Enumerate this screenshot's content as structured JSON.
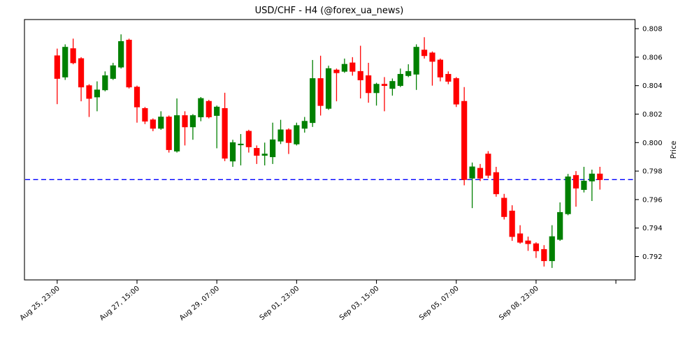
{
  "chart": {
    "title": "USD/CHF - H4 (@forex_ua_news)",
    "ylabel": "Price"
  },
  "chart_data": {
    "type": "candlestick",
    "title": "USD/CHF - H4 (@forex_ua_news)",
    "ylabel": "Price",
    "ylabel_side": "right",
    "grid": false,
    "ylim": [
      0.79036,
      0.80864
    ],
    "y_ticks": [
      0.792,
      0.794,
      0.796,
      0.798,
      0.8,
      0.802,
      0.804,
      0.806,
      0.808
    ],
    "x_ticks": [
      {
        "i": 0,
        "label": "Aug 25, 23:00"
      },
      {
        "i": 10,
        "label": "Aug 27, 15:00"
      },
      {
        "i": 20,
        "label": "Aug 29, 07:00"
      },
      {
        "i": 30,
        "label": "Sep 01, 23:00"
      },
      {
        "i": 40,
        "label": "Sep 03, 15:00"
      },
      {
        "i": 50,
        "label": "Sep 05, 07:00"
      },
      {
        "i": 60,
        "label": "Sep 08, 23:00"
      },
      {
        "i": 70,
        "label": ""
      }
    ],
    "hline": {
      "price": 0.7974,
      "color": "#0000ff",
      "style": "dashed"
    },
    "colors": {
      "up": "#008000",
      "down": "#ff0000",
      "axis": "#000000",
      "background": "#ffffff"
    },
    "candles_ohlc": [
      [
        0.8061,
        0.8066,
        0.8027,
        0.8045
      ],
      [
        0.8046,
        0.8069,
        0.8044,
        0.8067
      ],
      [
        0.8066,
        0.8073,
        0.8055,
        0.8056
      ],
      [
        0.8059,
        0.806,
        0.8029,
        0.8039
      ],
      [
        0.804,
        0.8041,
        0.8018,
        0.8031
      ],
      [
        0.8032,
        0.8043,
        0.8022,
        0.8037
      ],
      [
        0.8037,
        0.805,
        0.8036,
        0.8047
      ],
      [
        0.8045,
        0.8056,
        0.8044,
        0.8054
      ],
      [
        0.8053,
        0.8076,
        0.8052,
        0.8071
      ],
      [
        0.8072,
        0.8073,
        0.8038,
        0.8039
      ],
      [
        0.8039,
        0.804,
        0.8014,
        0.8025
      ],
      [
        0.8024,
        0.8025,
        0.8013,
        0.8015
      ],
      [
        0.8016,
        0.8017,
        0.8008,
        0.801
      ],
      [
        0.801,
        0.8022,
        0.8009,
        0.8018
      ],
      [
        0.8018,
        0.8019,
        0.7993,
        0.7995
      ],
      [
        0.7994,
        0.8031,
        0.7993,
        0.8019
      ],
      [
        0.8019,
        0.8022,
        0.7998,
        0.8011
      ],
      [
        0.8011,
        0.802,
        0.8002,
        0.8019
      ],
      [
        0.8018,
        0.8032,
        0.8015,
        0.8031
      ],
      [
        0.8029,
        0.803,
        0.8017,
        0.8018
      ],
      [
        0.8019,
        0.8026,
        0.7996,
        0.8025
      ],
      [
        0.8024,
        0.8035,
        0.7987,
        0.7989
      ],
      [
        0.7987,
        0.8002,
        0.7983,
        0.8
      ],
      [
        0.7999,
        0.8006,
        0.7984,
        0.7999
      ],
      [
        0.8008,
        0.8009,
        0.7993,
        0.7997
      ],
      [
        0.7996,
        0.7998,
        0.7985,
        0.7991
      ],
      [
        0.7991,
        0.8,
        0.7984,
        0.7992
      ],
      [
        0.799,
        0.8014,
        0.7985,
        0.8002
      ],
      [
        0.8001,
        0.8016,
        0.7999,
        0.8009
      ],
      [
        0.8009,
        0.801,
        0.7992,
        0.8
      ],
      [
        0.7999,
        0.8014,
        0.7998,
        0.8012
      ],
      [
        0.801,
        0.8018,
        0.8007,
        0.8015
      ],
      [
        0.8014,
        0.8058,
        0.8011,
        0.8045
      ],
      [
        0.8045,
        0.8061,
        0.8019,
        0.8026
      ],
      [
        0.8024,
        0.8054,
        0.8023,
        0.8052
      ],
      [
        0.8051,
        0.8052,
        0.8029,
        0.8049
      ],
      [
        0.805,
        0.8059,
        0.8049,
        0.8055
      ],
      [
        0.8056,
        0.806,
        0.8047,
        0.805
      ],
      [
        0.805,
        0.8068,
        0.8031,
        0.8044
      ],
      [
        0.8047,
        0.8056,
        0.8028,
        0.8035
      ],
      [
        0.8035,
        0.8042,
        0.8026,
        0.8041
      ],
      [
        0.8041,
        0.8046,
        0.8022,
        0.804
      ],
      [
        0.8038,
        0.8045,
        0.8033,
        0.8043
      ],
      [
        0.804,
        0.8052,
        0.8039,
        0.8048
      ],
      [
        0.8047,
        0.8055,
        0.8046,
        0.805
      ],
      [
        0.8048,
        0.8069,
        0.8037,
        0.8067
      ],
      [
        0.8065,
        0.8074,
        0.8059,
        0.8061
      ],
      [
        0.8063,
        0.8064,
        0.804,
        0.8057
      ],
      [
        0.8058,
        0.8059,
        0.8043,
        0.8046
      ],
      [
        0.8048,
        0.805,
        0.8041,
        0.8043
      ],
      [
        0.8045,
        0.8046,
        0.8025,
        0.8027
      ],
      [
        0.8029,
        0.8039,
        0.797,
        0.7974
      ],
      [
        0.7975,
        0.7986,
        0.7954,
        0.7983
      ],
      [
        0.7982,
        0.7985,
        0.7973,
        0.7975
      ],
      [
        0.7992,
        0.7994,
        0.7975,
        0.7977
      ],
      [
        0.7979,
        0.7983,
        0.7962,
        0.7964
      ],
      [
        0.7961,
        0.7964,
        0.7946,
        0.7948
      ],
      [
        0.7952,
        0.7956,
        0.7931,
        0.7934
      ],
      [
        0.7936,
        0.7942,
        0.7929,
        0.793
      ],
      [
        0.7931,
        0.7934,
        0.7924,
        0.7929
      ],
      [
        0.7929,
        0.793,
        0.7919,
        0.7924
      ],
      [
        0.7925,
        0.7928,
        0.7913,
        0.7917
      ],
      [
        0.7917,
        0.7942,
        0.7912,
        0.7934
      ],
      [
        0.7932,
        0.7958,
        0.7931,
        0.7951
      ],
      [
        0.795,
        0.7978,
        0.7949,
        0.7976
      ],
      [
        0.7977,
        0.798,
        0.7955,
        0.7968
      ],
      [
        0.7967,
        0.7983,
        0.7965,
        0.7973
      ],
      [
        0.7973,
        0.7981,
        0.7959,
        0.7978
      ],
      [
        0.7978,
        0.7983,
        0.7967,
        0.7974
      ]
    ]
  }
}
